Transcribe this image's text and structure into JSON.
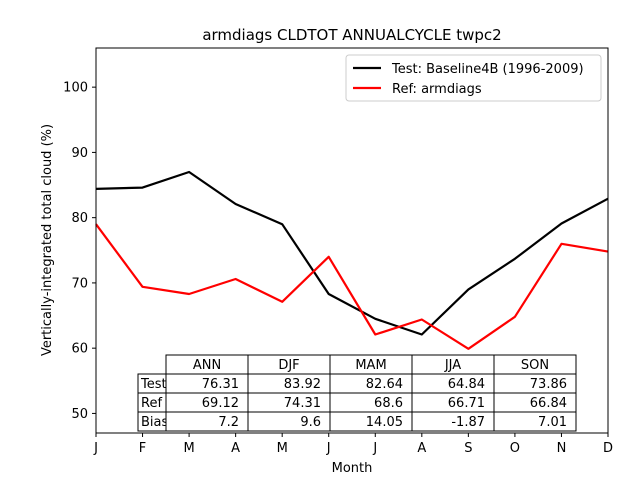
{
  "chart_data": {
    "type": "line",
    "title": "armdiags CLDTOT ANNUALCYCLE twpc2",
    "xlabel": "Month",
    "ylabel": "Vertically-integrated total cloud (%)",
    "categories": [
      "J",
      "F",
      "M",
      "A",
      "M",
      "J",
      "J",
      "A",
      "S",
      "O",
      "N",
      "D"
    ],
    "ylim": [
      47,
      106
    ],
    "yticks": [
      50,
      60,
      70,
      80,
      90,
      100
    ],
    "grid": false,
    "legend_position": "upper right",
    "series": [
      {
        "name": "Test: Baseline4B (1996-2009)",
        "color": "#000000",
        "values": [
          84.4,
          84.6,
          87.0,
          82.1,
          79.0,
          68.3,
          64.5,
          62.1,
          69.0,
          73.7,
          79.1,
          82.9
        ]
      },
      {
        "name": "Ref: armdiags",
        "color": "#ff0000",
        "values": [
          79.0,
          69.4,
          68.3,
          70.6,
          67.1,
          74.0,
          62.1,
          64.4,
          59.9,
          64.8,
          76.0,
          74.8
        ]
      }
    ],
    "table": {
      "columns": [
        "ANN",
        "DJF",
        "MAM",
        "JJA",
        "SON"
      ],
      "rows": [
        {
          "label": "Test",
          "values": [
            "76.31",
            "83.92",
            "82.64",
            "64.84",
            "73.86"
          ]
        },
        {
          "label": "Ref",
          "values": [
            "69.12",
            "74.31",
            "68.6",
            "66.71",
            "66.84"
          ]
        },
        {
          "label": "Bias",
          "values": [
            "7.2",
            "9.6",
            "14.05",
            "-1.87",
            "7.01"
          ]
        }
      ]
    }
  }
}
